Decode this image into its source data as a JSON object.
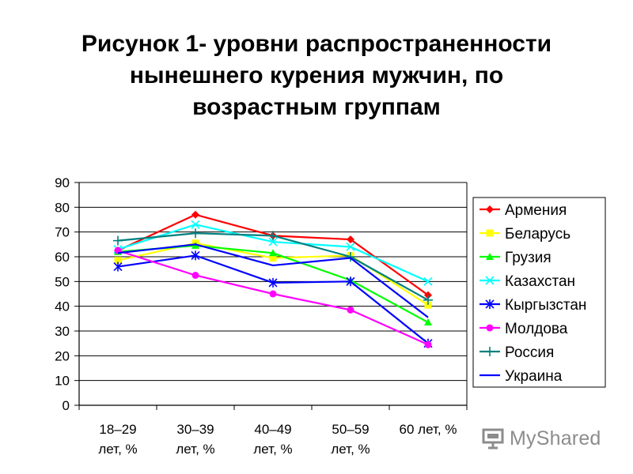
{
  "title": {
    "lines": [
      "Рисунок 1- уровни распространенности",
      "нынешнего курения мужчин, по",
      "возрастным группам"
    ]
  },
  "chart_data": {
    "type": "line",
    "categories": [
      [
        "18–29",
        "лет, %"
      ],
      [
        "30–39",
        "лет, %"
      ],
      [
        "40–49",
        "лет, %"
      ],
      [
        "50–59",
        "лет, %"
      ],
      [
        "60 лет, %"
      ]
    ],
    "ylim": [
      0,
      90
    ],
    "yticks": [
      0,
      10,
      20,
      30,
      40,
      50,
      60,
      70,
      80,
      90
    ],
    "grid": true,
    "legend_position": "right",
    "series": [
      {
        "name": "Армения",
        "color": "#ff0000",
        "marker": "diamond",
        "values": [
          62.5,
          77,
          68.5,
          67,
          44.5
        ]
      },
      {
        "name": "Беларусь",
        "color": "#ffff00",
        "marker": "square",
        "values": [
          58.5,
          65.5,
          59.5,
          60.5,
          40.5
        ]
      },
      {
        "name": "Грузия",
        "color": "#00ff00",
        "marker": "triangle",
        "values": [
          62,
          64.5,
          61.5,
          50.5,
          33.5
        ]
      },
      {
        "name": "Казахстан",
        "color": "#00ffff",
        "marker": "x",
        "values": [
          63,
          73,
          66,
          64,
          50
        ]
      },
      {
        "name": "Кыргызстан",
        "color": "#0000ff",
        "marker": "star",
        "values": [
          56,
          60.5,
          49.5,
          50,
          25
        ]
      },
      {
        "name": "Молдова",
        "color": "#ff00ff",
        "marker": "circle",
        "values": [
          62.5,
          52.5,
          45,
          38.5,
          24.5
        ]
      },
      {
        "name": "Россия",
        "color": "#008080",
        "marker": "plus",
        "values": [
          66.5,
          69.5,
          68.5,
          60,
          42.5
        ]
      },
      {
        "name": "Украина",
        "color": "#0000ff",
        "marker": "none",
        "values": [
          61.5,
          65,
          56.5,
          59.5,
          35.5
        ]
      }
    ]
  },
  "watermark": {
    "text": "MyShared",
    "icon": "presentation-screen-icon"
  }
}
